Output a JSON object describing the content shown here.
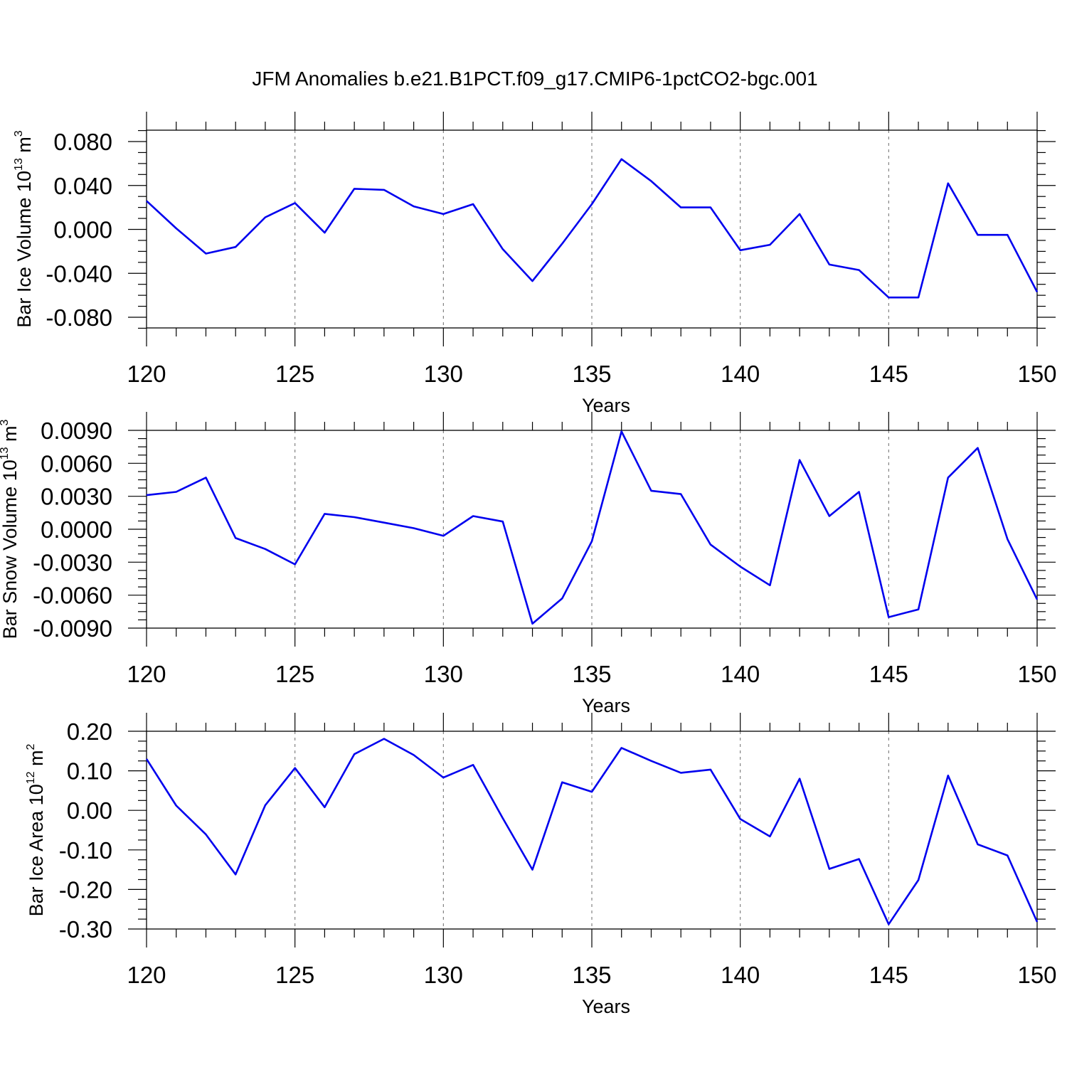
{
  "title": "JFM Anomalies b.e21.B1PCT.f09_g17.CMIP6-1pctCO2-bgc.001",
  "series_color": "#0000ee",
  "chart_data": [
    {
      "type": "line",
      "ylabel": {
        "text": "Bar Ice Volume 10",
        "sup": "13",
        "unit": " m",
        "unit_sup": "3"
      },
      "xlabel": "Years",
      "xlim": [
        120,
        150
      ],
      "ylim": [
        -0.09,
        0.09
      ],
      "grid": "dashed vertical at major x ticks",
      "xticks": [
        120,
        125,
        130,
        135,
        140,
        145,
        150
      ],
      "yticks": [
        -0.08,
        -0.04,
        0.0,
        0.04,
        0.08
      ],
      "ytick_labels": [
        "-0.080",
        "-0.040",
        "0.000",
        "0.040",
        "0.080"
      ],
      "x": [
        120,
        121,
        122,
        123,
        124,
        125,
        126,
        127,
        128,
        129,
        130,
        131,
        132,
        133,
        134,
        135,
        136,
        137,
        138,
        139,
        140,
        141,
        142,
        143,
        144,
        145,
        146,
        147,
        148,
        149,
        150
      ],
      "values": [
        0.026,
        0.001,
        -0.022,
        -0.016,
        0.011,
        0.024,
        -0.003,
        0.037,
        0.036,
        0.021,
        0.014,
        0.023,
        -0.018,
        -0.047,
        -0.013,
        0.023,
        0.064,
        0.044,
        0.02,
        0.02,
        -0.019,
        -0.014,
        0.014,
        -0.032,
        -0.037,
        -0.062,
        -0.062,
        0.042,
        -0.005,
        -0.005,
        -0.057
      ]
    },
    {
      "type": "line",
      "ylabel": {
        "text": "Bar Snow Volume 10",
        "sup": "13",
        "unit": " m",
        "unit_sup": "3"
      },
      "xlabel": "Years",
      "xlim": [
        120,
        150
      ],
      "ylim": [
        -0.009,
        0.009
      ],
      "grid": "dashed vertical at major x ticks",
      "xticks": [
        120,
        125,
        130,
        135,
        140,
        145,
        150
      ],
      "yticks": [
        -0.009,
        -0.006,
        -0.003,
        0.0,
        0.003,
        0.006,
        0.009
      ],
      "ytick_labels": [
        "-0.0090",
        "-0.0060",
        "-0.0030",
        "0.0000",
        "0.0030",
        "0.0060",
        "0.0090"
      ],
      "x": [
        120,
        121,
        122,
        123,
        124,
        125,
        126,
        127,
        128,
        129,
        130,
        131,
        132,
        133,
        134,
        135,
        136,
        137,
        138,
        139,
        140,
        141,
        142,
        143,
        144,
        145,
        146,
        147,
        148,
        149,
        150
      ],
      "values": [
        0.0031,
        0.0034,
        0.0047,
        -0.0008,
        -0.0018,
        -0.0032,
        0.0014,
        0.0011,
        0.0006,
        0.0001,
        -0.0006,
        0.0012,
        0.0007,
        -0.0086,
        -0.0063,
        -0.0011,
        0.0089,
        0.0035,
        0.0032,
        -0.0014,
        -0.0034,
        -0.0051,
        0.0063,
        0.0012,
        0.0034,
        -0.008,
        -0.0073,
        0.0047,
        0.0074,
        -0.0009,
        -0.0064
      ]
    },
    {
      "type": "line",
      "ylabel": {
        "text": "Bar Ice Area 10",
        "sup": "12",
        "unit": " m",
        "unit_sup": "2"
      },
      "xlabel": "Years",
      "xlim": [
        120,
        150
      ],
      "ylim": [
        -0.3,
        0.2
      ],
      "grid": "dashed vertical at major x ticks",
      "xticks": [
        120,
        125,
        130,
        135,
        140,
        145,
        150
      ],
      "yticks": [
        -0.3,
        -0.2,
        -0.1,
        0.0,
        0.1,
        0.2
      ],
      "ytick_labels": [
        "-0.30",
        "-0.20",
        "-0.10",
        "0.00",
        "0.10",
        "0.20"
      ],
      "x": [
        120,
        121,
        122,
        123,
        124,
        125,
        126,
        127,
        128,
        129,
        130,
        131,
        132,
        133,
        134,
        135,
        136,
        137,
        138,
        139,
        140,
        141,
        142,
        143,
        144,
        145,
        146,
        147,
        148,
        149,
        150
      ],
      "values": [
        0.13,
        0.012,
        -0.061,
        -0.162,
        0.013,
        0.107,
        0.008,
        0.142,
        0.181,
        0.14,
        0.083,
        0.115,
        -0.02,
        -0.15,
        0.071,
        0.047,
        0.158,
        0.125,
        0.095,
        0.103,
        -0.022,
        -0.066,
        0.08,
        -0.148,
        -0.123,
        -0.288,
        -0.176,
        0.088,
        -0.086,
        -0.114,
        -0.282
      ]
    }
  ]
}
